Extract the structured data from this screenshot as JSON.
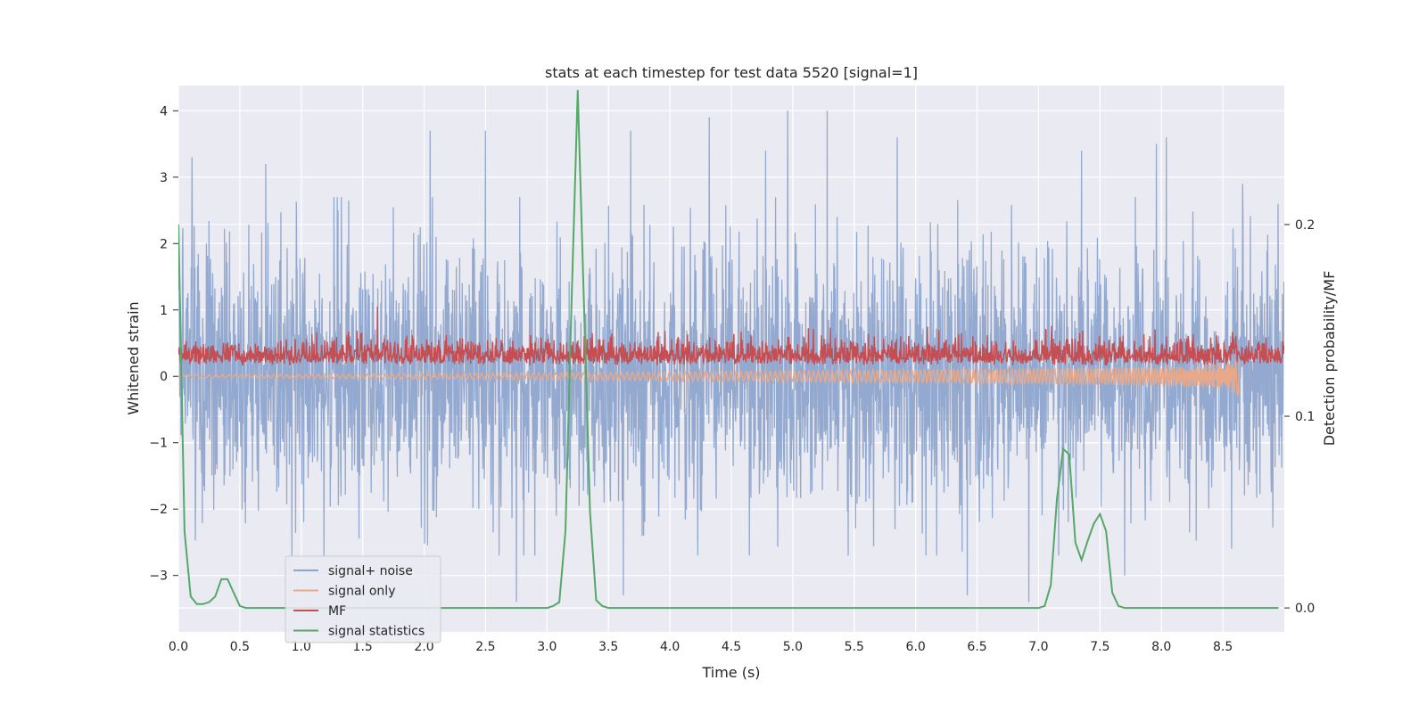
{
  "chart_data": {
    "type": "line",
    "title": "stats at each timestep for test data 5520 [signal=1]",
    "xlabel": "Time (s)",
    "ylabel": "Whitened strain",
    "ylabel_right": "Detection probability/MF",
    "xlim": [
      0,
      9.0
    ],
    "ylim": [
      -3.85,
      4.38
    ],
    "ylim_right": [
      -0.0125,
      0.2725
    ],
    "x_ticks": [
      0.0,
      0.5,
      1.0,
      1.5,
      2.0,
      2.5,
      3.0,
      3.5,
      4.0,
      4.5,
      5.0,
      5.5,
      6.0,
      6.5,
      7.0,
      7.5,
      8.0,
      8.5
    ],
    "x_tick_labels": [
      "0.0",
      "0.5",
      "1.0",
      "1.5",
      "2.0",
      "2.5",
      "3.0",
      "3.5",
      "4.0",
      "4.5",
      "5.0",
      "5.5",
      "6.0",
      "6.5",
      "7.0",
      "7.5",
      "8.0",
      "8.5"
    ],
    "y_ticks": [
      -3,
      -2,
      -1,
      0,
      1,
      2,
      3,
      4
    ],
    "y_tick_labels": [
      "−3",
      "−2",
      "−1",
      "0",
      "1",
      "2",
      "3",
      "4"
    ],
    "y_ticks_right": [
      0.0,
      0.1,
      0.2
    ],
    "y_tick_labels_right": [
      "0.0",
      "0.1",
      "0.2"
    ],
    "grid": true,
    "legend_position": "lower-left",
    "series": [
      {
        "name": "signal+ noise",
        "color": "#8fa5cc",
        "axis": "left",
        "kind": "noise",
        "sigma": 0.98,
        "t_end": 9.0,
        "peaks": [
          [
            0.11,
            3.3
          ],
          [
            0.71,
            3.2
          ],
          [
            1.3,
            2.5
          ],
          [
            2.05,
            3.7
          ],
          [
            2.5,
            3.7
          ],
          [
            2.75,
            -3.4
          ],
          [
            3.68,
            3.7
          ],
          [
            3.62,
            -3.3
          ],
          [
            4.32,
            3.9
          ],
          [
            4.78,
            3.4
          ],
          [
            4.96,
            4.0
          ],
          [
            5.28,
            4.0
          ],
          [
            5.85,
            3.6
          ],
          [
            6.42,
            -3.3
          ],
          [
            6.92,
            -3.4
          ],
          [
            7.35,
            3.4
          ],
          [
            7.7,
            -3.0
          ],
          [
            7.96,
            3.5
          ],
          [
            8.04,
            3.6
          ],
          [
            8.66,
            2.9
          ],
          [
            8.95,
            2.6
          ]
        ]
      },
      {
        "name": "signal only",
        "color": "#e8a98a",
        "axis": "left",
        "kind": "chirp",
        "t_start": 0.0,
        "t_end": 8.65,
        "end_amplitude": 0.3
      },
      {
        "name": "MF",
        "color": "#c44e52",
        "axis": "left",
        "kind": "mf",
        "mean": 0.25,
        "t_end": 9.0,
        "peaks": [
          [
            1.62,
            1.05
          ]
        ]
      },
      {
        "name": "signal statistics",
        "color": "#55a868",
        "axis": "right",
        "kind": "line",
        "x": [
          0.0,
          0.05,
          0.1,
          0.15,
          0.2,
          0.25,
          0.3,
          0.35,
          0.4,
          0.45,
          0.5,
          0.55,
          0.6,
          0.65,
          1.0,
          2.0,
          3.0,
          3.05,
          3.1,
          3.15,
          3.2,
          3.25,
          3.3,
          3.35,
          3.4,
          3.45,
          3.5,
          4.0,
          5.0,
          6.0,
          7.0,
          7.05,
          7.1,
          7.15,
          7.2,
          7.25,
          7.3,
          7.35,
          7.4,
          7.45,
          7.5,
          7.55,
          7.6,
          7.65,
          7.7,
          7.75,
          7.8,
          8.0,
          8.5,
          8.95
        ],
        "y": [
          0.2,
          0.04,
          0.006,
          0.002,
          0.002,
          0.003,
          0.006,
          0.015,
          0.015,
          0.008,
          0.001,
          0.0,
          0.0,
          0.0,
          0.0,
          0.0,
          0.0,
          0.001,
          0.003,
          0.04,
          0.16,
          0.27,
          0.16,
          0.05,
          0.004,
          0.001,
          0.0,
          0.0,
          0.0,
          0.0,
          0.0,
          0.001,
          0.012,
          0.057,
          0.083,
          0.08,
          0.034,
          0.025,
          0.035,
          0.044,
          0.049,
          0.04,
          0.008,
          0.001,
          0.0,
          0.0,
          0.0,
          0.0,
          0.0,
          0.0
        ]
      }
    ]
  }
}
